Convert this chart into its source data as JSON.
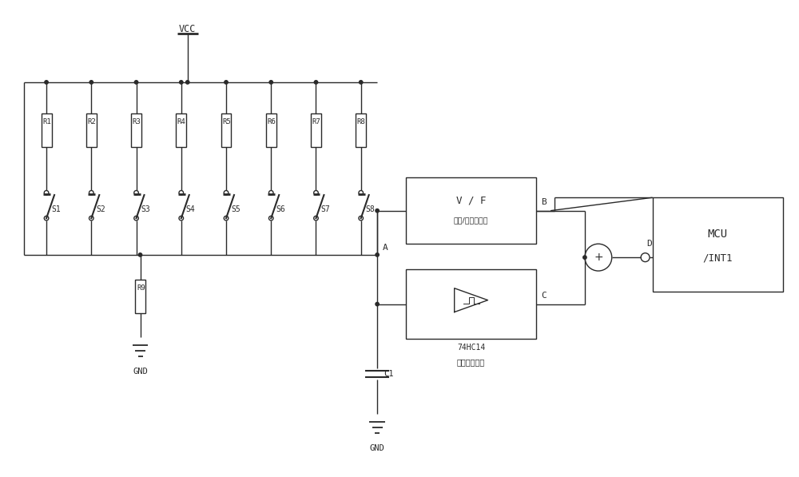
{
  "bg_color": "#ffffff",
  "line_color": "#2a2a2a",
  "resistor_labels": [
    "R1",
    "R2",
    "R3",
    "R4",
    "R5",
    "R6",
    "R7",
    "R8"
  ],
  "switch_labels": [
    "S1",
    "S2",
    "S3",
    "S4",
    "S5",
    "S6",
    "S7",
    "S8"
  ],
  "r9_label": "R9",
  "c1_label": "C1",
  "vf_box_label1": "V / F",
  "vf_box_label2": "电压/频率转换器",
  "hc14_box_label1": "74HC14",
  "hc14_box_label2": "施密特触发器",
  "mcu_label1": "MCU",
  "mcu_label2": "/INT1",
  "node_A": "A",
  "node_B": "B",
  "node_C": "C",
  "node_D": "D",
  "gnd_label": "GND",
  "vcc_label": "VCC"
}
